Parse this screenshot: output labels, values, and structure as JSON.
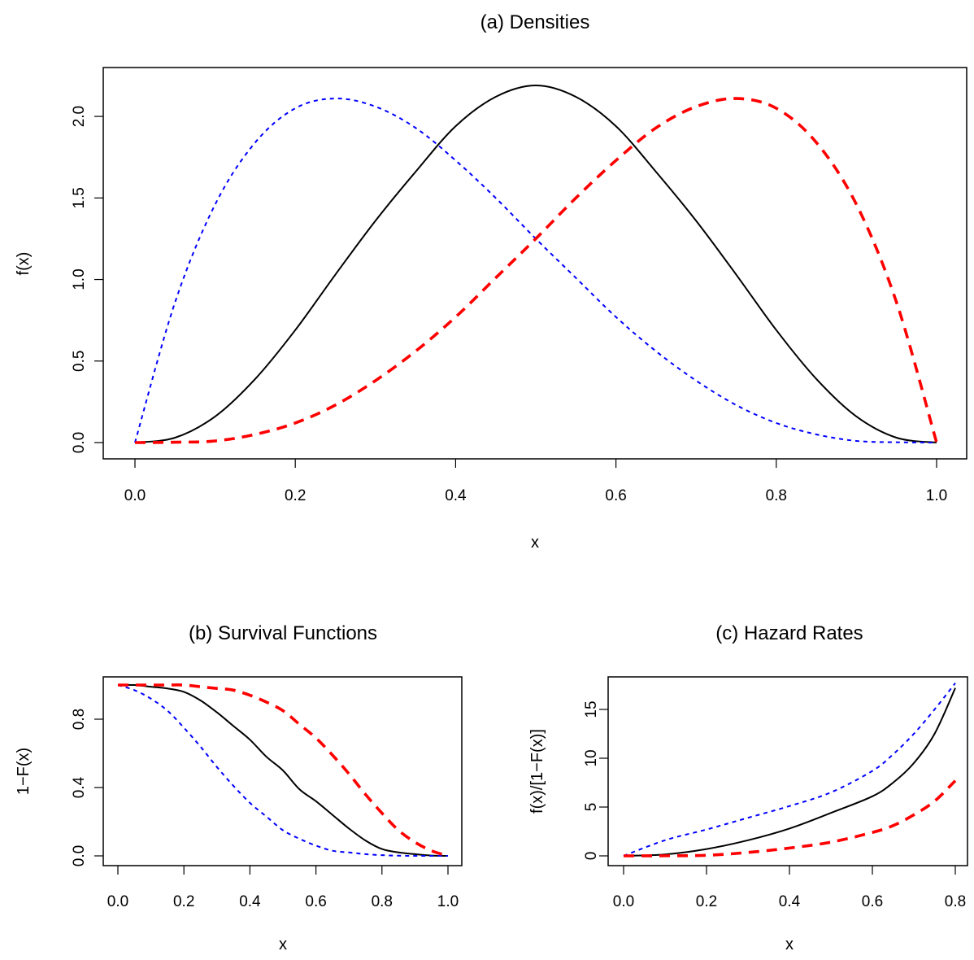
{
  "chart_data": [
    {
      "type": "line",
      "title": "(a) Densities",
      "xlabel": "x",
      "ylabel": "f(x)",
      "xlim": [
        0,
        1
      ],
      "ylim": [
        0,
        2.2
      ],
      "xticks": [
        "0.0",
        "0.2",
        "0.4",
        "0.6",
        "0.8",
        "1.0"
      ],
      "yticks": [
        "0.0",
        "0.5",
        "1.0",
        "1.5",
        "2.0"
      ],
      "x": [
        0,
        0.05,
        0.1,
        0.15,
        0.2,
        0.25,
        0.3,
        0.35,
        0.4,
        0.45,
        0.5,
        0.55,
        0.6,
        0.65,
        0.7,
        0.75,
        0.8,
        0.85,
        0.9,
        0.95,
        1.0
      ],
      "series": [
        {
          "color": "#000000",
          "style": "solid",
          "values": [
            0,
            0.03,
            0.16,
            0.39,
            0.69,
            1.03,
            1.36,
            1.66,
            1.94,
            2.12,
            2.19,
            2.12,
            1.94,
            1.66,
            1.36,
            1.03,
            0.69,
            0.39,
            0.16,
            0.03,
            0
          ]
        },
        {
          "color": "#0000ff",
          "style": "short-dash",
          "values": [
            0,
            0.86,
            1.46,
            1.84,
            2.05,
            2.11,
            2.06,
            1.93,
            1.73,
            1.5,
            1.25,
            1.01,
            0.77,
            0.56,
            0.38,
            0.23,
            0.12,
            0.05,
            0.01,
            0.002,
            0
          ]
        },
        {
          "color": "#ff0000",
          "style": "long-dash",
          "values": [
            0,
            0.002,
            0.01,
            0.05,
            0.12,
            0.23,
            0.38,
            0.56,
            0.77,
            1.01,
            1.25,
            1.5,
            1.73,
            1.93,
            2.06,
            2.11,
            2.05,
            1.84,
            1.46,
            0.86,
            0
          ]
        }
      ]
    },
    {
      "type": "line",
      "title": "(b) Survival Functions",
      "xlabel": "x",
      "ylabel": "1−F(x)",
      "xlim": [
        0,
        1
      ],
      "ylim": [
        0,
        1
      ],
      "xticks": [
        "0.0",
        "0.2",
        "0.4",
        "0.6",
        "0.8",
        "1.0"
      ],
      "yticks": [
        "0.0",
        "0.4",
        "0.8"
      ],
      "x": [
        0,
        0.05,
        0.1,
        0.15,
        0.2,
        0.25,
        0.3,
        0.35,
        0.4,
        0.45,
        0.5,
        0.55,
        0.6,
        0.65,
        0.7,
        0.75,
        0.8,
        0.85,
        0.9,
        0.95,
        1.0
      ],
      "series": [
        {
          "color": "#000000",
          "style": "solid",
          "values": [
            1,
            1,
            0.99,
            0.98,
            0.96,
            0.91,
            0.84,
            0.76,
            0.68,
            0.58,
            0.5,
            0.39,
            0.32,
            0.24,
            0.16,
            0.09,
            0.04,
            0.02,
            0.01,
            0.002,
            0
          ]
        },
        {
          "color": "#0000ff",
          "style": "short-dash",
          "values": [
            1,
            0.97,
            0.92,
            0.85,
            0.75,
            0.64,
            0.52,
            0.41,
            0.31,
            0.23,
            0.15,
            0.1,
            0.06,
            0.03,
            0.02,
            0.01,
            0.004,
            0.001,
            0,
            0,
            0
          ]
        },
        {
          "color": "#ff0000",
          "style": "long-dash",
          "values": [
            1,
            1,
            1,
            1,
            1,
            0.99,
            0.98,
            0.97,
            0.94,
            0.9,
            0.85,
            0.77,
            0.69,
            0.59,
            0.48,
            0.36,
            0.25,
            0.15,
            0.08,
            0.03,
            0
          ]
        }
      ]
    },
    {
      "type": "line",
      "title": "(c) Hazard Rates",
      "xlabel": "x",
      "ylabel": "f(x)/[1−F(x)]",
      "xlim": [
        0,
        0.8
      ],
      "ylim": [
        0,
        17.5
      ],
      "xticks": [
        "0.0",
        "0.2",
        "0.4",
        "0.6",
        "0.8"
      ],
      "yticks": [
        "0",
        "5",
        "10",
        "15"
      ],
      "x": [
        0,
        0.1,
        0.2,
        0.3,
        0.4,
        0.5,
        0.6,
        0.65,
        0.7,
        0.75,
        0.8
      ],
      "series": [
        {
          "color": "#000000",
          "style": "solid",
          "values": [
            0,
            0.15,
            0.7,
            1.6,
            2.8,
            4.4,
            6.1,
            7.5,
            9.5,
            12.5,
            17.2
          ]
        },
        {
          "color": "#0000ff",
          "style": "short-dash",
          "values": [
            0,
            1.6,
            2.7,
            3.9,
            5.1,
            6.5,
            8.7,
            10.4,
            12.5,
            15.0,
            17.7
          ]
        },
        {
          "color": "#ff0000",
          "style": "long-dash",
          "values": [
            0,
            0.01,
            0.06,
            0.35,
            0.8,
            1.4,
            2.4,
            3.1,
            4.2,
            5.6,
            7.7
          ]
        }
      ]
    }
  ]
}
